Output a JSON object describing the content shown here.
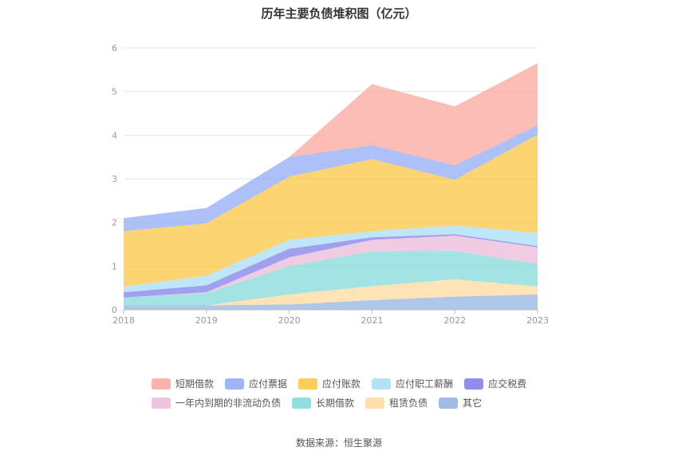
{
  "chart_data": {
    "type": "area",
    "stacked": true,
    "title": "历年主要负债堆积图（亿元）",
    "x": [
      "2018",
      "2019",
      "2020",
      "2021",
      "2022",
      "2023"
    ],
    "ylim": [
      0,
      6
    ],
    "yticks": [
      0,
      1,
      2,
      3,
      4,
      5,
      6
    ],
    "grid": true,
    "legend_position": "bottom",
    "series": [
      {
        "name": "其它",
        "color": "#8fb0de",
        "values": [
          0.1,
          0.1,
          0.12,
          0.22,
          0.3,
          0.35
        ]
      },
      {
        "name": "租赁负债",
        "color": "#fdd89a",
        "values": [
          0,
          0,
          0.23,
          0.32,
          0.4,
          0.18
        ]
      },
      {
        "name": "长期借款",
        "color": "#7fd8d8",
        "values": [
          0.18,
          0.28,
          0.65,
          0.8,
          0.65,
          0.52
        ]
      },
      {
        "name": "一年内到期的非流动负债",
        "color": "#eab8d8",
        "values": [
          0,
          0.02,
          0.2,
          0.26,
          0.35,
          0.38
        ]
      },
      {
        "name": "应交税费",
        "color": "#7b7be8",
        "values": [
          0.12,
          0.16,
          0.2,
          0.06,
          0.03,
          0.03
        ]
      },
      {
        "name": "应付职工薪酬",
        "color": "#a6dcf5",
        "values": [
          0.13,
          0.22,
          0.2,
          0.14,
          0.2,
          0.3
        ]
      },
      {
        "name": "应付账款",
        "color": "#fcc43c",
        "values": [
          1.27,
          1.2,
          1.45,
          1.65,
          1.05,
          2.25
        ]
      },
      {
        "name": "应付票据",
        "color": "#8ea8f5",
        "values": [
          0.3,
          0.35,
          0.45,
          0.32,
          0.33,
          0.22
        ]
      },
      {
        "name": "短期借款",
        "color": "#f9a49a",
        "values": [
          0,
          0,
          0,
          1.4,
          1.35,
          1.42
        ]
      }
    ],
    "legend_order": [
      "短期借款",
      "应付票据",
      "应付账款",
      "应付职工薪酬",
      "应交税费",
      "一年内到期的非流动负债",
      "长期借款",
      "租赁负债",
      "其它"
    ],
    "source": "数据来源：恒生聚源"
  }
}
